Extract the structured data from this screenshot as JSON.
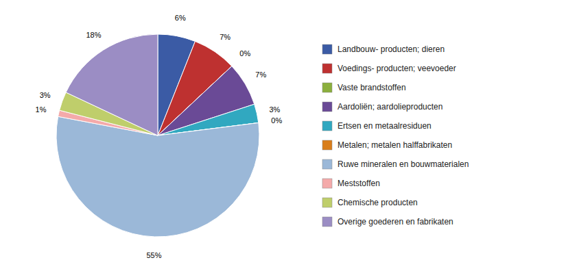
{
  "chart_data": {
    "type": "pie",
    "categories": [
      "Landbouw- producten; dieren",
      "Voedings- producten; veevoeder",
      "Vaste brandstoffen",
      "Aardoliën; aardolieproducten",
      "Ertsen en metaalresiduen",
      "Metalen; metalen halffabrikaten",
      "Ruwe mineralen en bouwmaterialen",
      "Meststoffen",
      "Chemische producten",
      "Overige goederen en fabrikaten"
    ],
    "values": [
      6,
      7,
      0,
      7,
      3,
      0,
      55,
      1,
      3,
      18
    ],
    "value_labels": [
      "6%",
      "7%",
      "0%",
      "7%",
      "3%",
      "0%",
      "55%",
      "1%",
      "3%",
      "18%"
    ],
    "colors": [
      "#3B5BA5",
      "#BE3130",
      "#8BAF3D",
      "#6A4A96",
      "#31A8C0",
      "#D97E1A",
      "#9BB8D8",
      "#F4AAAA",
      "#BFCE6B",
      "#9B8DC4"
    ],
    "data_labels": true,
    "legend": "right"
  }
}
